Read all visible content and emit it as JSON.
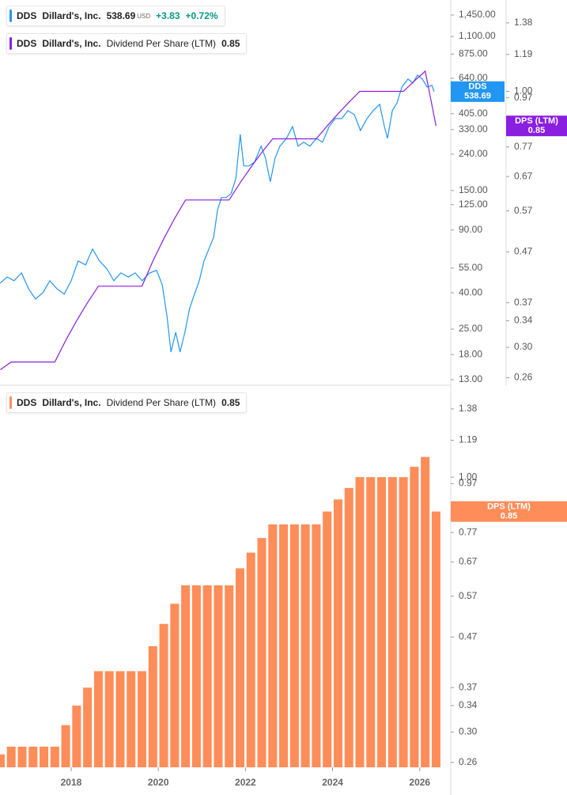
{
  "chart_data": [
    {
      "type": "line",
      "ticker": "DDS",
      "company": "Dillard's, Inc.",
      "currency": "USD",
      "change": "+3.83",
      "change_pct": "+0.72%",
      "metric": "Dividend Per Share (LTM)",
      "log_scale": true,
      "xlim": [
        2016.367,
        2026.712
      ],
      "ylim": [
        12.1,
        1761
      ],
      "yticks": [
        {
          "value": 1450,
          "label": "1,450.00"
        },
        {
          "value": 1100,
          "label": "1,100.00"
        },
        {
          "value": 875,
          "label": "875.00"
        },
        {
          "value": 640,
          "label": "640.00"
        },
        {
          "value": 405,
          "label": "405.00"
        },
        {
          "value": 330,
          "label": "330.00"
        },
        {
          "value": 240,
          "label": "240.00"
        },
        {
          "value": 150,
          "label": "150.00"
        },
        {
          "value": 125,
          "label": "125.00"
        },
        {
          "value": 90,
          "label": "90.00"
        },
        {
          "value": 55,
          "label": "55.00"
        },
        {
          "value": 40,
          "label": "40.00"
        },
        {
          "value": 25,
          "label": "25.00"
        },
        {
          "value": 18,
          "label": "18.00"
        },
        {
          "value": 13,
          "label": "13.00"
        }
      ],
      "y2lim": [
        0.251,
        1.537
      ],
      "y2ticks": [
        1.38,
        1.19,
        {
          "value": 1.0,
          "label": "1.00"
        },
        0.97,
        0.77,
        0.67,
        0.57,
        0.47,
        0.37,
        0.34,
        {
          "value": 0.3,
          "label": "0.30"
        },
        0.26
      ],
      "series": [
        {
          "name": "DDS",
          "color": "#2196f3",
          "axis": "y",
          "x": [
            2016.37,
            2016.53,
            2016.69,
            2016.86,
            2017.02,
            2017.18,
            2017.35,
            2017.51,
            2017.67,
            2017.84,
            2018.0,
            2018.16,
            2018.33,
            2018.49,
            2018.65,
            2018.82,
            2018.98,
            2019.14,
            2019.31,
            2019.47,
            2019.63,
            2019.8,
            2019.96,
            2020.09,
            2020.2,
            2020.29,
            2020.4,
            2020.5,
            2020.61,
            2020.72,
            2020.83,
            2020.94,
            2021.05,
            2021.16,
            2021.27,
            2021.36,
            2021.45,
            2021.56,
            2021.67,
            2021.78,
            2021.88,
            2021.96,
            2022.08,
            2022.21,
            2022.36,
            2022.46,
            2022.57,
            2022.68,
            2022.79,
            2022.94,
            2023.08,
            2023.21,
            2023.34,
            2023.48,
            2023.63,
            2023.77,
            2023.92,
            2024.06,
            2024.21,
            2024.35,
            2024.5,
            2024.64,
            2024.79,
            2024.93,
            2025.08,
            2025.19,
            2025.26,
            2025.37,
            2025.48,
            2025.59,
            2025.73,
            2025.84,
            2025.95,
            2026.06,
            2026.17,
            2026.28,
            2026.33
          ],
          "values": [
            45.3,
            49,
            46.7,
            51.7,
            42.2,
            36.9,
            40,
            46.7,
            42.2,
            39.3,
            46.7,
            60.3,
            57.3,
            70.4,
            60.3,
            54.5,
            46.7,
            51.7,
            49,
            51.7,
            46.7,
            51.7,
            53.4,
            44.4,
            29.5,
            18.6,
            24,
            18.6,
            24,
            32.7,
            39.3,
            46.7,
            60.3,
            70.4,
            82,
            117,
            137,
            137,
            144,
            176,
            310,
            206,
            206,
            217,
            266,
            228,
            168,
            228,
            266,
            294,
            343,
            266,
            280,
            266,
            294,
            280,
            343,
            380,
            380,
            421,
            400,
            326,
            380,
            421,
            457,
            343,
            294,
            421,
            466,
            572,
            634,
            602,
            667,
            634,
            572,
            584,
            538.69
          ]
        },
        {
          "name": "DPS (LTM)",
          "color": "#8a1fe0",
          "axis": "y2",
          "x": [
            2016.375,
            2016.625,
            2016.875,
            2017.125,
            2017.375,
            2017.625,
            2017.875,
            2018.125,
            2018.375,
            2018.625,
            2018.875,
            2019.125,
            2019.375,
            2019.625,
            2019.875,
            2020.125,
            2020.375,
            2020.625,
            2020.875,
            2021.125,
            2021.375,
            2021.625,
            2021.875,
            2022.125,
            2022.375,
            2022.625,
            2022.875,
            2023.125,
            2023.375,
            2023.625,
            2023.875,
            2024.125,
            2024.375,
            2024.625,
            2024.875,
            2025.125,
            2025.375,
            2025.625,
            2025.875,
            2026.125,
            2026.375
          ],
          "values": [
            0.27,
            0.28,
            0.28,
            0.28,
            0.28,
            0.28,
            0.31,
            0.34,
            0.37,
            0.4,
            0.4,
            0.4,
            0.4,
            0.4,
            0.45,
            0.5,
            0.55,
            0.6,
            0.6,
            0.6,
            0.6,
            0.6,
            0.65,
            0.7,
            0.75,
            0.8,
            0.8,
            0.8,
            0.8,
            0.8,
            0.85,
            0.9,
            0.95,
            1.0,
            1.0,
            1.0,
            1.0,
            1.0,
            1.05,
            1.1,
            0.85
          ]
        }
      ]
    },
    {
      "type": "bar",
      "ticker": "DDS",
      "company": "Dillard's, Inc.",
      "metric": "Dividend Per Share (LTM)",
      "name": "DPS (LTM)",
      "color": "#fe8d59",
      "log_scale": true,
      "xlim": [
        2016.367,
        2026.712
      ],
      "xticks": [
        2018,
        2020,
        2022,
        2024,
        2026
      ],
      "ylim": [
        0.254,
        1.526
      ],
      "yticks": [
        1.38,
        1.19,
        {
          "value": 1.0,
          "label": "1.00"
        },
        0.97,
        0.77,
        0.67,
        0.57,
        0.47,
        0.37,
        0.34,
        {
          "value": 0.3,
          "label": "0.30"
        },
        0.26
      ],
      "x": [
        2016.375,
        2016.625,
        2016.875,
        2017.125,
        2017.375,
        2017.625,
        2017.875,
        2018.125,
        2018.375,
        2018.625,
        2018.875,
        2019.125,
        2019.375,
        2019.625,
        2019.875,
        2020.125,
        2020.375,
        2020.625,
        2020.875,
        2021.125,
        2021.375,
        2021.625,
        2021.875,
        2022.125,
        2022.375,
        2022.625,
        2022.875,
        2023.125,
        2023.375,
        2023.625,
        2023.875,
        2024.125,
        2024.375,
        2024.625,
        2024.875,
        2025.125,
        2025.375,
        2025.625,
        2025.875,
        2026.125,
        2026.375
      ],
      "values": [
        0.27,
        0.28,
        0.28,
        0.28,
        0.28,
        0.28,
        0.31,
        0.34,
        0.37,
        0.4,
        0.4,
        0.4,
        0.4,
        0.4,
        0.45,
        0.5,
        0.55,
        0.6,
        0.6,
        0.6,
        0.6,
        0.6,
        0.65,
        0.7,
        0.75,
        0.8,
        0.8,
        0.8,
        0.8,
        0.8,
        0.85,
        0.9,
        0.95,
        1.0,
        1.0,
        1.0,
        1.0,
        1.0,
        1.05,
        1.1,
        0.85
      ]
    }
  ]
}
